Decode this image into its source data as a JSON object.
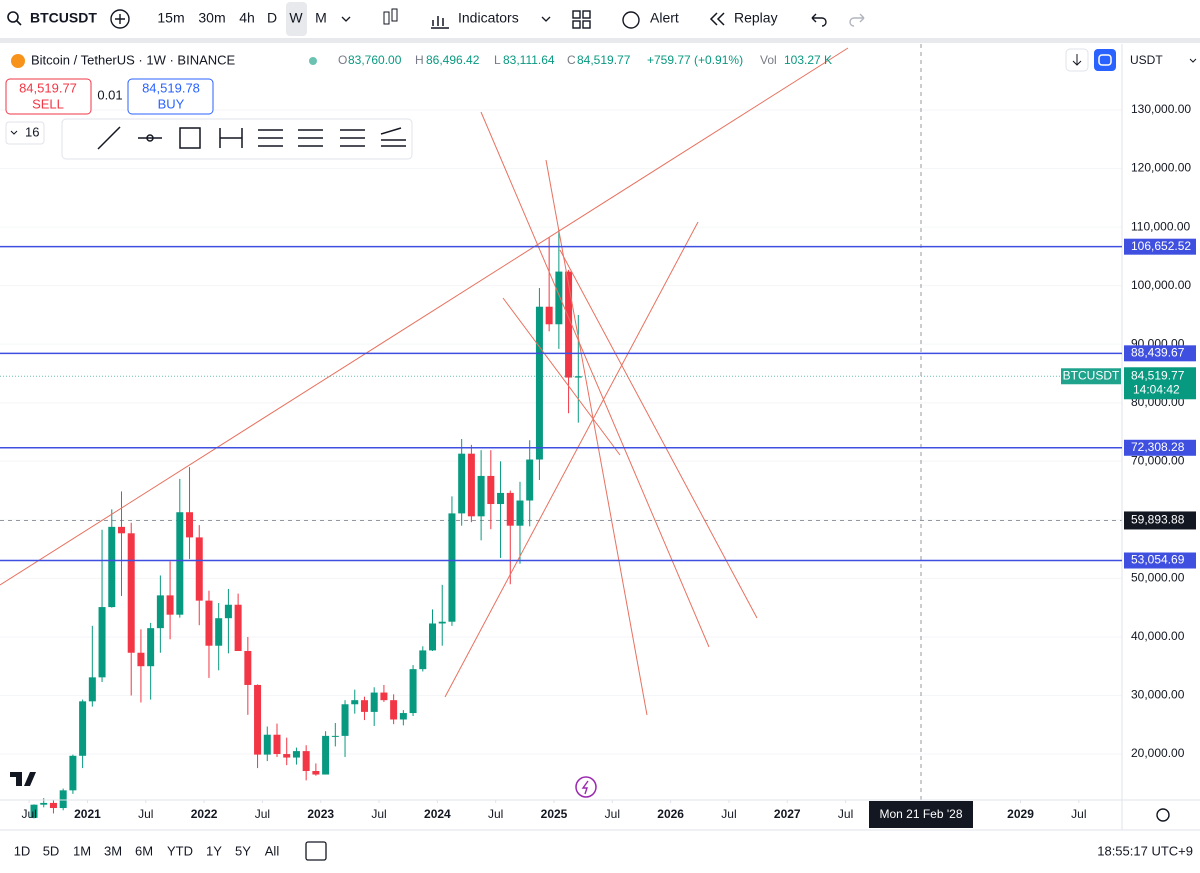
{
  "toolbar": {
    "symbol": "BTCUSDT",
    "intervals": [
      "15m",
      "30m",
      "4h",
      "D",
      "W",
      "M"
    ],
    "indicators": "Indicators",
    "alert": "Alert",
    "replay": "Replay"
  },
  "legend": {
    "title": "Bitcoin / TetherUS · 1W · BINANCE",
    "open_label": "O",
    "open": "83,760.00",
    "high_label": "H",
    "high": "86,496.42",
    "low_label": "L",
    "low": "83,111.64",
    "close_label": "C",
    "close": "84,519.77",
    "change": "+759.77 (+0.91%)",
    "vol_label": "Vol",
    "vol": "103.27 K"
  },
  "trade": {
    "sell_price": "84,519.77",
    "sell": "SELL",
    "spread": "0.01",
    "buy_price": "84,519.78",
    "buy": "BUY"
  },
  "drawing_toolbar": {
    "count": "16"
  },
  "chart_data": {
    "type": "candlestick",
    "currency": "USDT",
    "x": [
      "2020-07",
      "2020-08",
      "2020-09",
      "2020-10",
      "2020-11",
      "2020-12",
      "2021-01",
      "2021-02",
      "2021-03",
      "2021-04",
      "2021-05",
      "2021-06",
      "2021-07",
      "2021-08",
      "2021-09",
      "2021-10",
      "2021-11",
      "2021-12",
      "2022-01",
      "2022-02",
      "2022-03",
      "2022-04",
      "2022-05",
      "2022-06",
      "2022-07",
      "2022-08",
      "2022-09",
      "2022-10",
      "2022-11",
      "2022-12",
      "2023-01",
      "2023-02",
      "2023-03",
      "2023-04",
      "2023-05",
      "2023-06",
      "2023-07",
      "2023-08",
      "2023-09",
      "2023-10",
      "2023-11",
      "2023-12",
      "2024-01",
      "2024-02",
      "2024-03",
      "2024-04",
      "2024-05",
      "2024-06",
      "2024-07",
      "2024-08",
      "2024-09",
      "2024-10",
      "2024-11",
      "2024-12",
      "2025-01",
      "2025-02",
      "2025-03"
    ],
    "ohlc": [
      [
        9100,
        11400,
        9000,
        11350
      ],
      [
        11350,
        12470,
        10900,
        11650
      ],
      [
        11650,
        12090,
        9850,
        10780
      ],
      [
        10780,
        14100,
        10400,
        13800
      ],
      [
        13800,
        19900,
        13200,
        19700
      ],
      [
        19700,
        29300,
        17600,
        29000
      ],
      [
        29000,
        41900,
        28100,
        33100
      ],
      [
        33100,
        58300,
        32300,
        45100
      ],
      [
        45100,
        61800,
        45000,
        58800
      ],
      [
        58800,
        64850,
        47000,
        57700
      ],
      [
        57700,
        59500,
        30000,
        37300
      ],
      [
        37300,
        41300,
        28800,
        35000
      ],
      [
        35000,
        42400,
        29300,
        41500
      ],
      [
        41500,
        50500,
        37300,
        47100
      ],
      [
        47100,
        52900,
        39600,
        43800
      ],
      [
        43800,
        67000,
        43300,
        61300
      ],
      [
        61300,
        69000,
        53300,
        57000
      ],
      [
        57000,
        59100,
        42000,
        46200
      ],
      [
        46200,
        47900,
        33000,
        38500
      ],
      [
        38500,
        45800,
        34300,
        43200
      ],
      [
        43200,
        48200,
        37200,
        45500
      ],
      [
        45500,
        47400,
        37600,
        37600
      ],
      [
        37600,
        40000,
        26700,
        31800
      ],
      [
        31800,
        31900,
        17600,
        19900
      ],
      [
        19900,
        24700,
        18800,
        23300
      ],
      [
        23300,
        25200,
        19500,
        20000
      ],
      [
        20000,
        22800,
        18100,
        19400
      ],
      [
        19400,
        21100,
        18200,
        20500
      ],
      [
        20500,
        21500,
        15500,
        17100
      ],
      [
        17100,
        18400,
        16300,
        16500
      ],
      [
        16500,
        23900,
        16500,
        23100
      ],
      [
        23100,
        25300,
        21300,
        23100
      ],
      [
        23100,
        29200,
        19500,
        28500
      ],
      [
        28500,
        31000,
        26900,
        29200
      ],
      [
        29200,
        29800,
        25800,
        27200
      ],
      [
        27200,
        31400,
        24800,
        30500
      ],
      [
        30500,
        31800,
        28900,
        29200
      ],
      [
        29200,
        30200,
        25100,
        25900
      ],
      [
        25900,
        27500,
        24900,
        27000
      ],
      [
        27000,
        35200,
        26500,
        34500
      ],
      [
        34500,
        38400,
        34100,
        37700
      ],
      [
        37700,
        44700,
        37600,
        42300
      ],
      [
        42300,
        48900,
        38500,
        42600
      ],
      [
        42600,
        64000,
        41900,
        61100
      ],
      [
        61100,
        73800,
        59000,
        71300
      ],
      [
        71300,
        72800,
        59600,
        60600
      ],
      [
        60600,
        71900,
        56500,
        67500
      ],
      [
        67500,
        71900,
        58400,
        62700
      ],
      [
        62700,
        70000,
        53500,
        64600
      ],
      [
        64600,
        65000,
        49000,
        59000
      ],
      [
        59000,
        66500,
        52500,
        63300
      ],
      [
        63300,
        73600,
        58900,
        70300
      ],
      [
        70300,
        99600,
        66800,
        96400
      ],
      [
        96400,
        108300,
        92200,
        93400
      ],
      [
        93400,
        109600,
        89200,
        102400
      ],
      [
        102400,
        102700,
        78200,
        84300
      ],
      [
        84300,
        95000,
        76600,
        84520
      ]
    ],
    "up_color": "#089981",
    "down_color": "#f23645",
    "ylim": [
      12150,
      141270
    ],
    "yticks": [
      {
        "value": 130000,
        "label": "130,000.00"
      },
      {
        "value": 120000,
        "label": "120,000.00"
      },
      {
        "value": 110000,
        "label": "110,000.00"
      },
      {
        "value": 100000,
        "label": "100,000.00"
      },
      {
        "value": 90000,
        "label": "90,000.00"
      },
      {
        "value": 80000,
        "label": "80,000.00"
      },
      {
        "value": 70000,
        "label": "70,000.00"
      },
      {
        "value": 60000,
        "label": "60,000.00"
      },
      {
        "value": 50000,
        "label": "50,000.00"
      },
      {
        "value": 40000,
        "label": "40,000.00"
      },
      {
        "value": 30000,
        "label": "30,000.00"
      },
      {
        "value": 20000,
        "label": "20,000.00"
      }
    ],
    "xlim": [
      2020.25,
      2029.87
    ],
    "xticks": [
      {
        "value": 2020.5,
        "label": "Jul"
      },
      2021,
      {
        "value": 2021.5,
        "label": "Jul"
      },
      2022,
      {
        "value": 2022.5,
        "label": "Jul"
      },
      2023,
      {
        "value": 2023.5,
        "label": "Jul"
      },
      2024,
      {
        "value": 2024.5,
        "label": "Jul"
      },
      2025,
      {
        "value": 2025.5,
        "label": "Jul"
      },
      2026,
      {
        "value": 2026.5,
        "label": "Jul"
      },
      2027,
      {
        "value": 2027.5,
        "label": "Jul"
      },
      2029,
      {
        "value": 2029.5,
        "label": "Jul"
      }
    ],
    "levels": [
      {
        "value": 106652.52,
        "label": "106,652.52"
      },
      {
        "value": 88439.67,
        "label": "88,439.67"
      },
      {
        "value": 72308.28,
        "label": "72,308.28"
      },
      {
        "value": 53054.69,
        "label": "53,054.69"
      }
    ],
    "level_color": "#3f4fe0",
    "last_price": {
      "value": 84519.77,
      "label": "84,519.77"
    },
    "last_symbol": "BTCUSDT",
    "countdown": "14:04:42",
    "crosshair": {
      "value": 59893.88,
      "label": "59,893.88"
    },
    "crosshair_date": "Mon 21 Feb '28"
  },
  "bottom_bar": {
    "ranges": [
      "1D",
      "5D",
      "1M",
      "3M",
      "6M",
      "YTD",
      "1Y",
      "5Y",
      "All"
    ],
    "clock": "18:55:17 UTC+9"
  }
}
